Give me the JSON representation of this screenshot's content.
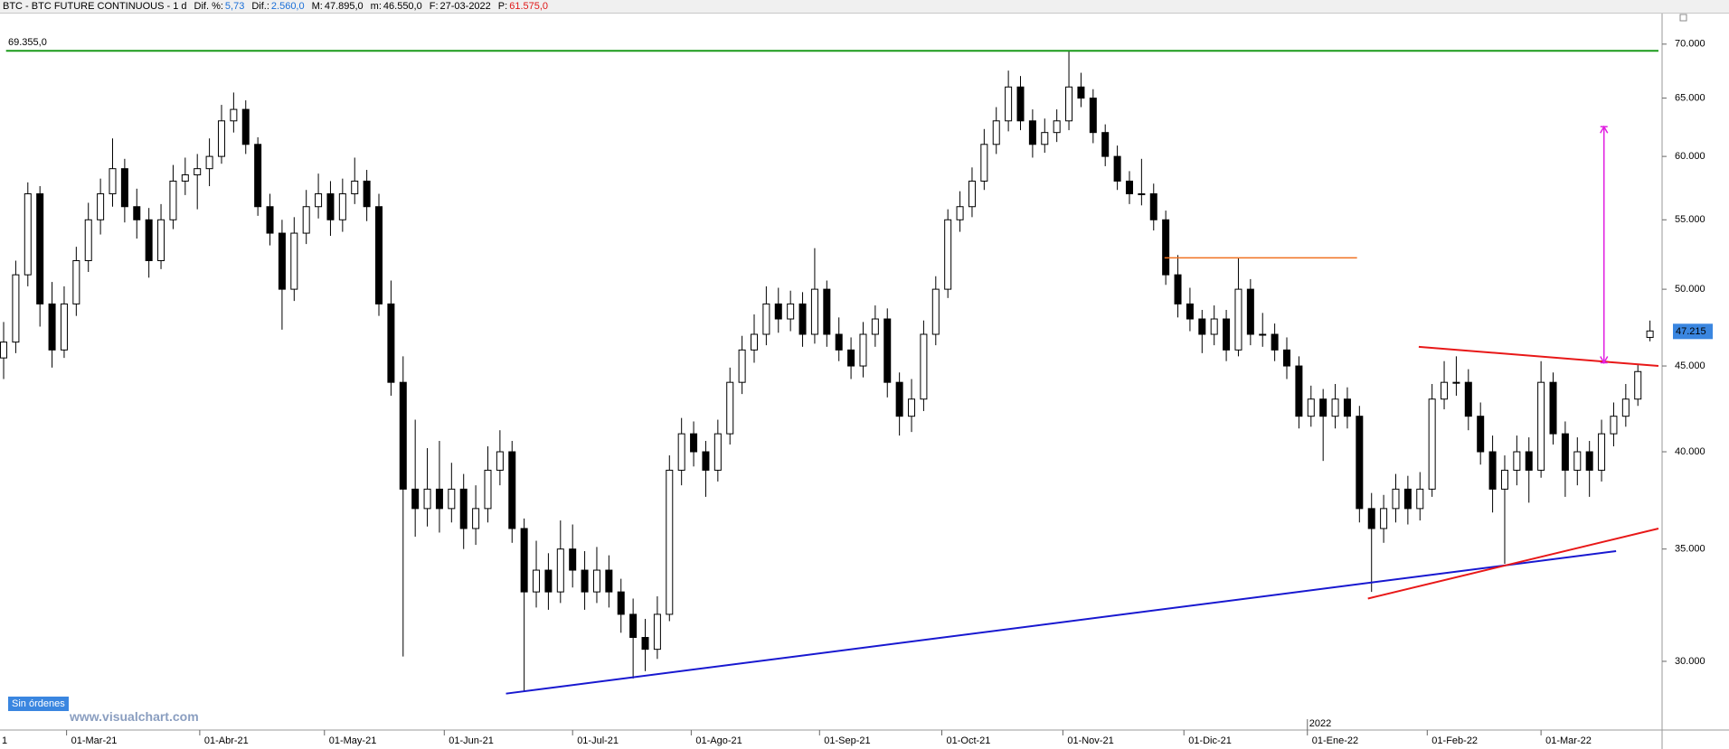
{
  "header": {
    "instrument": "BTC - BTC FUTURE CONTINUOUS - 1 d",
    "fields": [
      {
        "label": "Dif. %:",
        "value": "5,73",
        "color": "#1a6fd8"
      },
      {
        "label": "Dif.:",
        "value": "2.560,0",
        "color": "#1a6fd8"
      },
      {
        "label": "M:",
        "value": "47.895,0",
        "color": "#000000"
      },
      {
        "label": "m:",
        "value": "46.550,0",
        "color": "#000000"
      },
      {
        "label": "F:",
        "value": "27-03-2022",
        "color": "#000000"
      },
      {
        "label": "P:",
        "value": "61.575,0",
        "color": "#e01818"
      }
    ]
  },
  "status": "Sin órdenes",
  "watermark": "www.visualchart.com",
  "chart_data": {
    "type": "candlestick",
    "log": true,
    "grid": false,
    "up_color": "#ffffff",
    "down_color": "#000000",
    "xlim": [
      -0.3,
      137
    ],
    "ylim": [
      27300,
      73000
    ],
    "yticks": [
      {
        "value": 30000,
        "label": "30.000"
      },
      {
        "value": 35000,
        "label": "35.000"
      },
      {
        "value": 40000,
        "label": "40.000"
      },
      {
        "value": 45000,
        "label": "45.000"
      },
      {
        "value": 50000,
        "label": "50.000"
      },
      {
        "value": 55000,
        "label": "55.000"
      },
      {
        "value": 60000,
        "label": "60.000"
      },
      {
        "value": 65000,
        "label": "65.000"
      },
      {
        "value": 70000,
        "label": "70.000"
      }
    ],
    "xticks": [
      {
        "value": -0.8,
        "label": "1"
      },
      {
        "value": 5.2,
        "label": "01-Mar-21"
      },
      {
        "value": 16.2,
        "label": "01-Abr-21"
      },
      {
        "value": 26.5,
        "label": "01-May-21"
      },
      {
        "value": 36.4,
        "label": "01-Jun-21"
      },
      {
        "value": 47.0,
        "label": "01-Jul-21"
      },
      {
        "value": 56.8,
        "label": "01-Ago-21"
      },
      {
        "value": 67.4,
        "label": "01-Sep-21"
      },
      {
        "value": 77.5,
        "label": "01-Oct-21"
      },
      {
        "value": 87.5,
        "label": "01-Nov-21"
      },
      {
        "value": 97.5,
        "label": "01-Dic-21"
      },
      {
        "value": 107.7,
        "label": "01-Ene-22"
      },
      {
        "value": 117.6,
        "label": "01-Feb-22"
      },
      {
        "value": 127.0,
        "label": "01-Mar-22"
      }
    ],
    "year_marker": {
      "value": 107.7,
      "label": "2022"
    },
    "open": [
      45500,
      46500,
      51000,
      57000,
      49000,
      46000,
      49000,
      52000,
      55000,
      57000,
      59000,
      56000,
      55000,
      52000,
      55000,
      58000,
      58500,
      59000,
      60000,
      63000,
      64000,
      61000,
      56000,
      54000,
      50000,
      54000,
      56000,
      57000,
      55000,
      57000,
      58000,
      56000,
      49000,
      44000,
      38000,
      37000,
      38000,
      37000,
      38000,
      36000,
      37000,
      39000,
      40000,
      36000,
      33000,
      34000,
      33000,
      35000,
      34000,
      33000,
      34000,
      33000,
      32000,
      31000,
      30500,
      32000,
      39000,
      41000,
      40000,
      39000,
      41000,
      44000,
      46000,
      47000,
      49000,
      48000,
      49000,
      47000,
      50000,
      47000,
      46000,
      45000,
      47000,
      48000,
      44000,
      42000,
      43000,
      47000,
      50000,
      55000,
      56000,
      58000,
      61000,
      63000,
      66000,
      63000,
      61000,
      62000,
      63000,
      66000,
      65000,
      62000,
      60000,
      58000,
      57000,
      57000,
      55000,
      51000,
      49000,
      48000,
      47000,
      48000,
      46000,
      50000,
      47000,
      47000,
      46000,
      45000,
      42000,
      43000,
      42000,
      43000,
      42000,
      37000,
      36000,
      37000,
      38000,
      37000,
      38000,
      43000,
      44000,
      44000,
      42000,
      40000,
      38000,
      39000,
      40000,
      39000,
      44000,
      41000,
      39000,
      40000,
      39000,
      41000,
      42000,
      43000,
      46800
    ],
    "high": [
      47800,
      52000,
      57900,
      57600,
      50500,
      50200,
      53000,
      56300,
      58200,
      61500,
      59800,
      57400,
      55900,
      56200,
      59300,
      59900,
      60200,
      61500,
      64400,
      65500,
      64800,
      61600,
      57000,
      55000,
      55200,
      57300,
      58600,
      58000,
      58200,
      59900,
      58900,
      57000,
      50600,
      45600,
      41800,
      40200,
      40600,
      39400,
      38800,
      38200,
      40300,
      41200,
      40600,
      36500,
      35400,
      34800,
      36400,
      36200,
      34900,
      35100,
      34700,
      33600,
      32700,
      31800,
      32800,
      39800,
      41900,
      41700,
      40600,
      41800,
      44900,
      46900,
      48300,
      50200,
      50100,
      49900,
      49800,
      52900,
      50600,
      48100,
      46800,
      47800,
      48900,
      48700,
      44600,
      44200,
      47900,
      50900,
      55800,
      57200,
      59100,
      62300,
      64200,
      67500,
      67000,
      64000,
      63200,
      64000,
      69300,
      67300,
      65800,
      62700,
      60900,
      58800,
      59800,
      57800,
      55700,
      52400,
      50100,
      48600,
      48900,
      48600,
      52200,
      50700,
      48400,
      47700,
      46800,
      45600,
      43800,
      43600,
      43900,
      43700,
      42600,
      37800,
      37700,
      38800,
      38700,
      38900,
      43900,
      45300,
      45600,
      44800,
      42800,
      40900,
      39800,
      40900,
      40800,
      45300,
      44600,
      41700,
      40800,
      40600,
      41800,
      42800,
      43900,
      45100,
      47895
    ],
    "low": [
      44200,
      45800,
      50200,
      47500,
      44900,
      45500,
      48200,
      51200,
      53900,
      56000,
      54800,
      53600,
      50800,
      51400,
      54300,
      56900,
      55800,
      57600,
      59400,
      62000,
      60200,
      55300,
      53100,
      47300,
      49200,
      53200,
      55100,
      53800,
      54100,
      56200,
      54900,
      48200,
      43200,
      30200,
      35600,
      36100,
      35800,
      36300,
      35000,
      35200,
      36300,
      38200,
      35300,
      28800,
      32300,
      32200,
      32500,
      33200,
      32200,
      32500,
      32300,
      31200,
      29300,
      29600,
      30100,
      31700,
      38200,
      39200,
      37600,
      38400,
      40400,
      43300,
      45200,
      46300,
      47100,
      47200,
      46200,
      46400,
      46200,
      45300,
      44200,
      44300,
      46200,
      43100,
      40900,
      41100,
      42300,
      46300,
      49400,
      54100,
      55200,
      57300,
      60200,
      62100,
      62200,
      59900,
      60300,
      61200,
      62200,
      64200,
      61100,
      59200,
      57300,
      56200,
      56100,
      54200,
      50300,
      48100,
      47200,
      45800,
      46300,
      45300,
      45600,
      46300,
      46200,
      45300,
      44200,
      41300,
      41400,
      39500,
      41300,
      41300,
      36300,
      33000,
      35300,
      36300,
      36200,
      36400,
      37600,
      42400,
      43200,
      41200,
      39300,
      36800,
      34300,
      38200,
      37300,
      38600,
      40400,
      37600,
      38200,
      37600,
      38400,
      40300,
      41400,
      42600,
      46550
    ],
    "close": [
      46500,
      51000,
      57000,
      49000,
      46000,
      49000,
      52000,
      55000,
      57000,
      59000,
      56000,
      55000,
      52000,
      55000,
      58000,
      58500,
      59000,
      60000,
      63000,
      64000,
      61000,
      56000,
      54000,
      50000,
      54000,
      56000,
      57000,
      55000,
      57000,
      58000,
      56000,
      49000,
      44000,
      38000,
      37000,
      38000,
      37000,
      38000,
      36000,
      37000,
      39000,
      40000,
      36000,
      33000,
      34000,
      33000,
      35000,
      34000,
      33000,
      34000,
      33000,
      32000,
      31000,
      30500,
      32000,
      39000,
      41000,
      40000,
      39000,
      41000,
      44000,
      46000,
      47000,
      49000,
      48000,
      49000,
      47000,
      50000,
      47000,
      46000,
      45000,
      47000,
      48000,
      44000,
      42000,
      43000,
      47000,
      50000,
      55000,
      56000,
      58000,
      61000,
      63000,
      66000,
      63000,
      61000,
      62000,
      63000,
      66000,
      65000,
      62000,
      60000,
      58000,
      57000,
      57000,
      55000,
      51000,
      49000,
      48000,
      47000,
      48000,
      46000,
      50000,
      47000,
      47000,
      46000,
      45000,
      42000,
      43000,
      42000,
      43000,
      42000,
      37000,
      36000,
      37000,
      38000,
      37000,
      38000,
      43000,
      44000,
      44000,
      42000,
      40000,
      38000,
      39000,
      40000,
      39000,
      44000,
      41000,
      39000,
      40000,
      39000,
      41000,
      42000,
      43000,
      44655,
      47215
    ],
    "lines": [
      {
        "x": [
          0.2,
          136.7
        ],
        "y": [
          69355,
          69355
        ],
        "color": "#1a9a1a",
        "width": 2,
        "arrows": false
      },
      {
        "x": [
          95.9,
          111.8
        ],
        "y": [
          52200,
          52200
        ],
        "color": "#f07020",
        "width": 1.5,
        "arrows": false
      },
      {
        "x": [
          41.5,
          133.2
        ],
        "y": [
          28700,
          34900
        ],
        "color": "#1818d0",
        "width": 2,
        "arrows": false
      },
      {
        "x": [
          116.9,
          136.7
        ],
        "y": [
          46200,
          45000
        ],
        "color": "#e81818",
        "width": 2,
        "arrows": false
      },
      {
        "x": [
          112.7,
          136.7
        ],
        "y": [
          32700,
          36000
        ],
        "color": "#e81818",
        "width": 2,
        "arrows": false
      },
      {
        "x": [
          132.2,
          132.2
        ],
        "y": [
          45200,
          62500
        ],
        "color": "#e020e0",
        "width": 1.5,
        "arrows": true
      }
    ],
    "level_label": {
      "value": 69355,
      "label": "69.355,0",
      "color": "#1a9a1a"
    },
    "last_price": {
      "value": 47215,
      "label": "47.215",
      "color": "#3a86e0"
    }
  }
}
